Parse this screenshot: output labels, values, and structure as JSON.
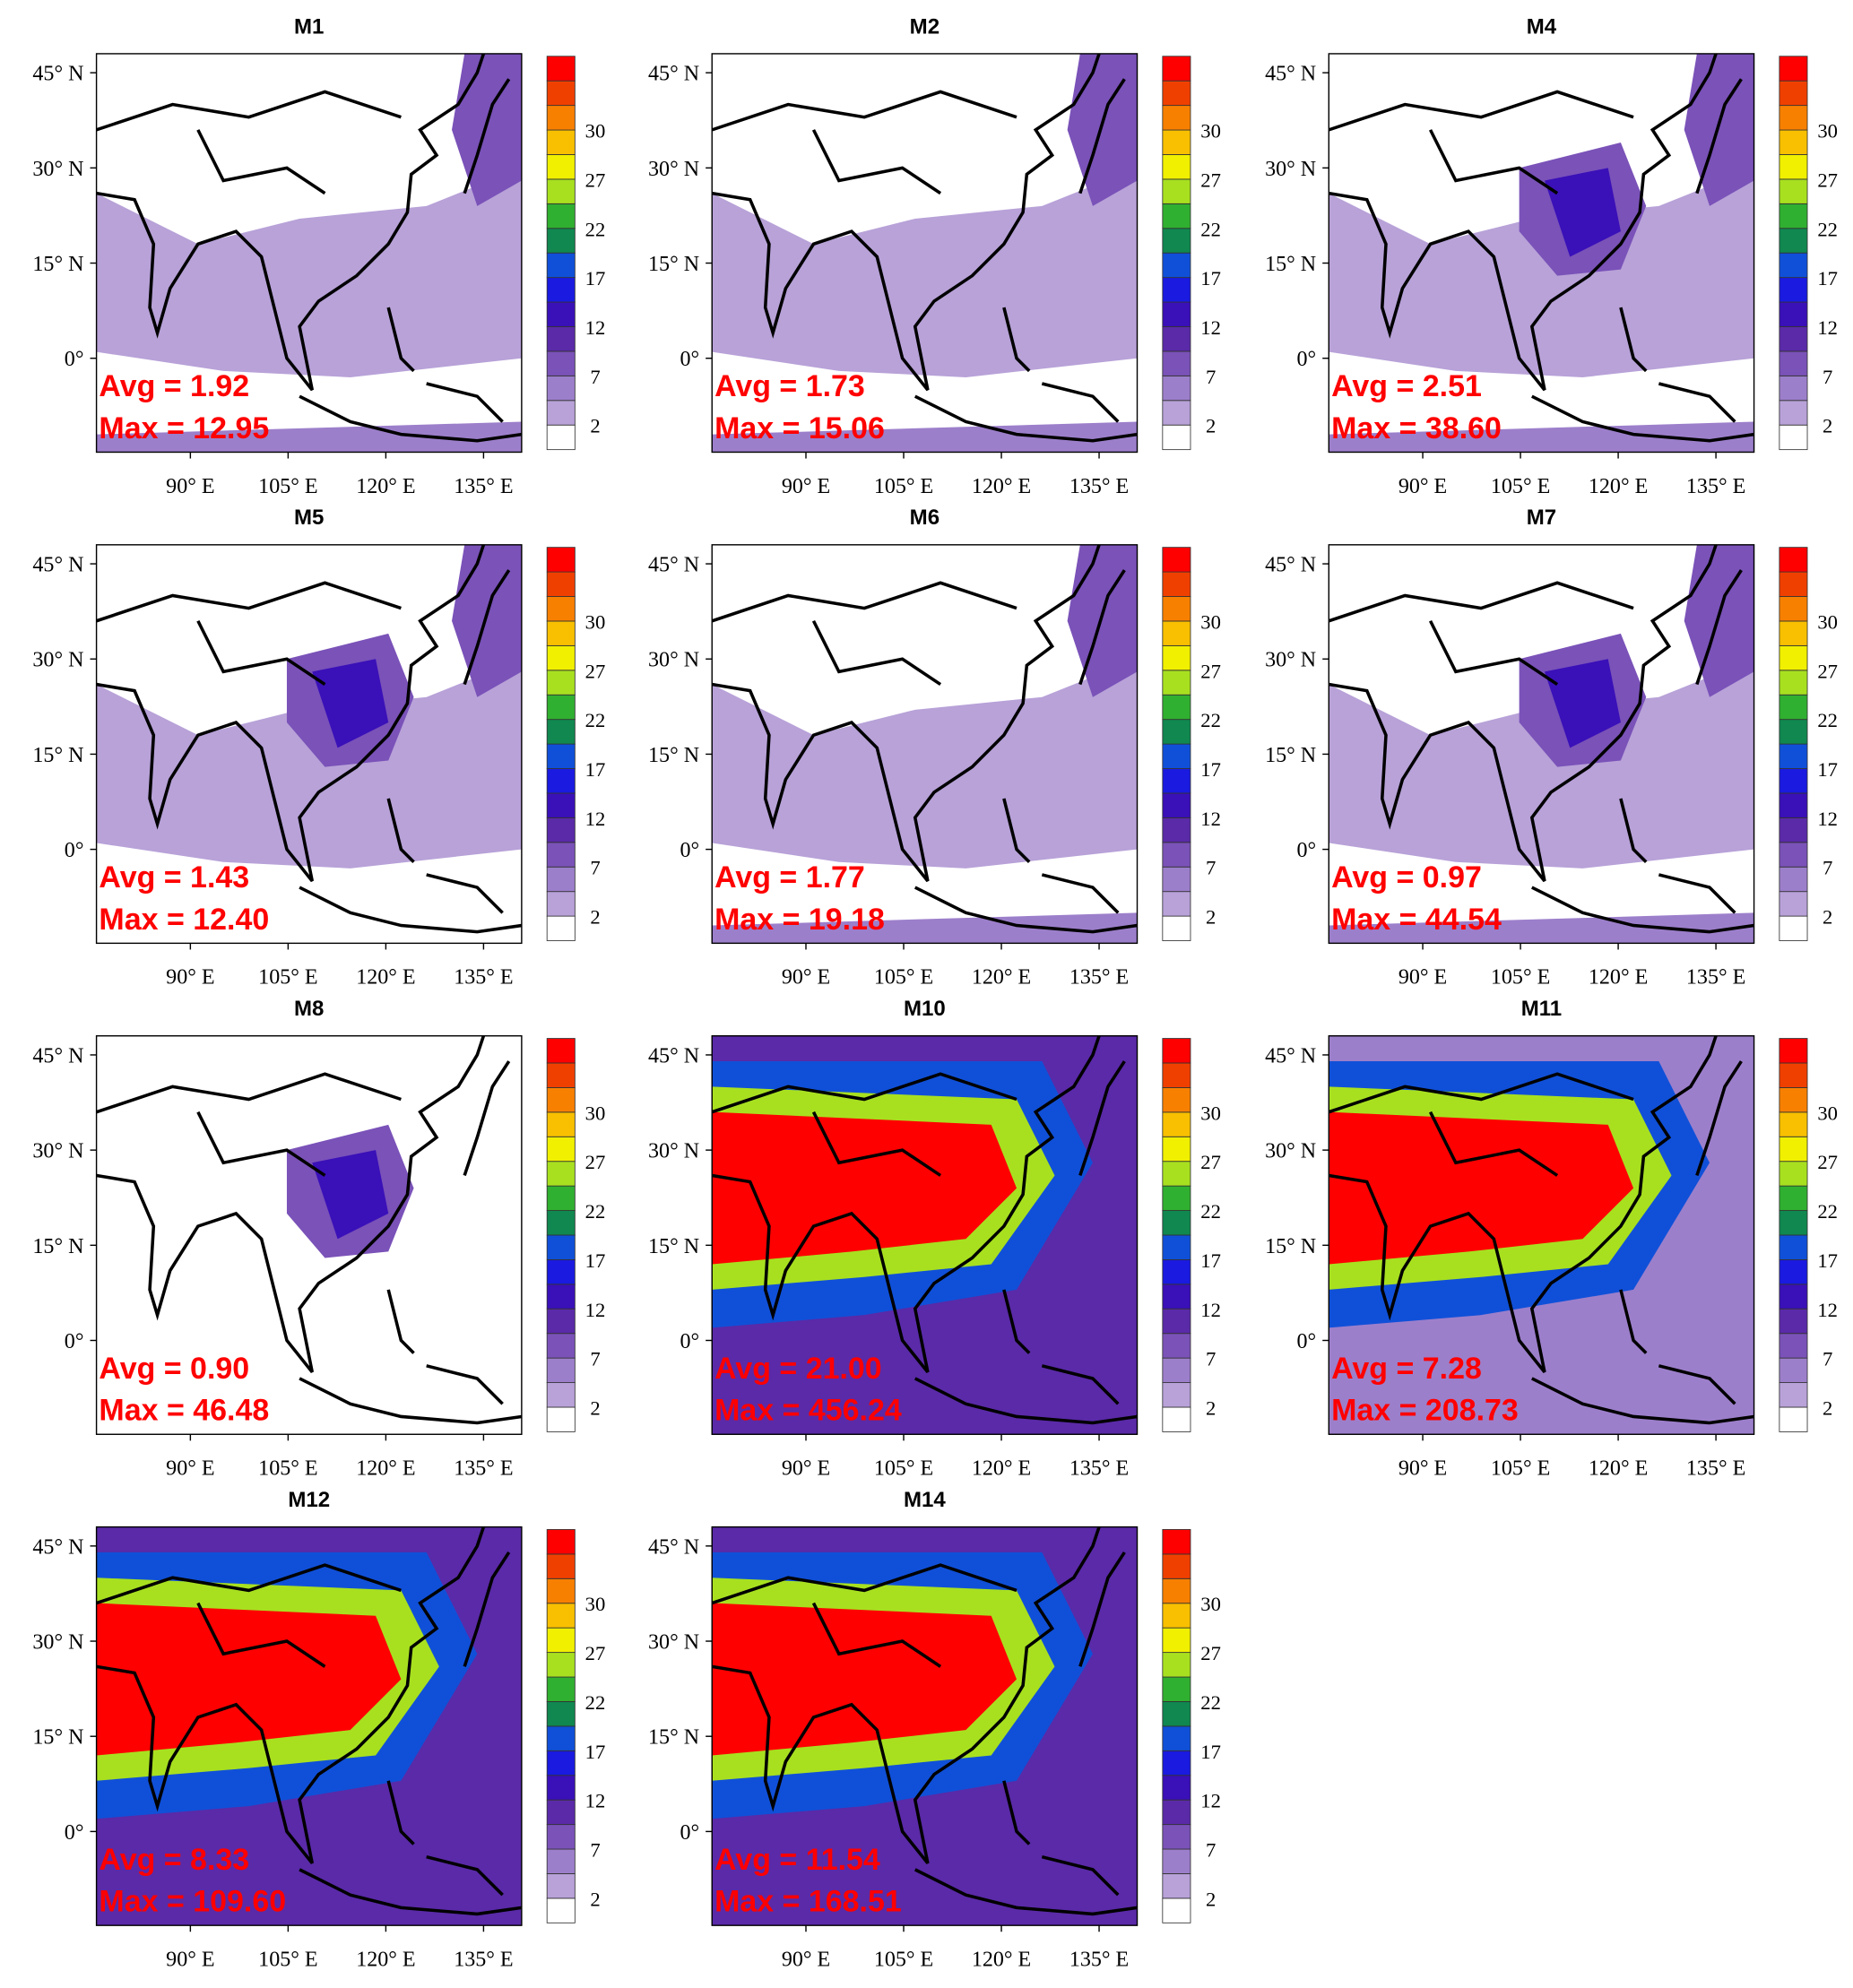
{
  "panels": [
    {
      "title": "M1",
      "avg": "Avg = 1.92",
      "max": "Max = 12.95"
    },
    {
      "title": "M2",
      "avg": "Avg = 1.73",
      "max": "Max = 15.06"
    },
    {
      "title": "M4",
      "avg": "Avg = 2.51",
      "max": "Max = 38.60"
    },
    {
      "title": "M5",
      "avg": "Avg = 1.43",
      "max": "Max = 12.40"
    },
    {
      "title": "M6",
      "avg": "Avg = 1.77",
      "max": "Max = 19.18"
    },
    {
      "title": "M7",
      "avg": "Avg = 0.97",
      "max": "Max = 44.54"
    },
    {
      "title": "M8",
      "avg": "Avg = 0.90",
      "max": "Max = 46.48"
    },
    {
      "title": "M10",
      "avg": "Avg = 21.00",
      "max": "Max = 456.24"
    },
    {
      "title": "M11",
      "avg": "Avg = 7.28",
      "max": "Max = 208.73"
    },
    {
      "title": "M12",
      "avg": "Avg = 8.33",
      "max": "Max = 109.60"
    },
    {
      "title": "M14",
      "avg": "Avg = 11.54",
      "max": "Max = 168.51"
    }
  ],
  "lat_labels": [
    "45° N",
    "30° N",
    "15° N",
    "0°"
  ],
  "lon_labels": [
    "90° E",
    "105° E",
    "120° E",
    "135° E"
  ],
  "colorbar": {
    "colors": [
      "#ffffff",
      "#b8a2d8",
      "#9c7fcb",
      "#7a52b8",
      "#5a2aa8",
      "#3a10b8",
      "#1a1ae0",
      "#1050d8",
      "#108850",
      "#30b030",
      "#a8e020",
      "#f0f000",
      "#f8c000",
      "#f88000",
      "#f04000",
      "#ff0000"
    ],
    "labels": [
      "2",
      "7",
      "12",
      "17",
      "22",
      "27",
      "30"
    ]
  }
}
